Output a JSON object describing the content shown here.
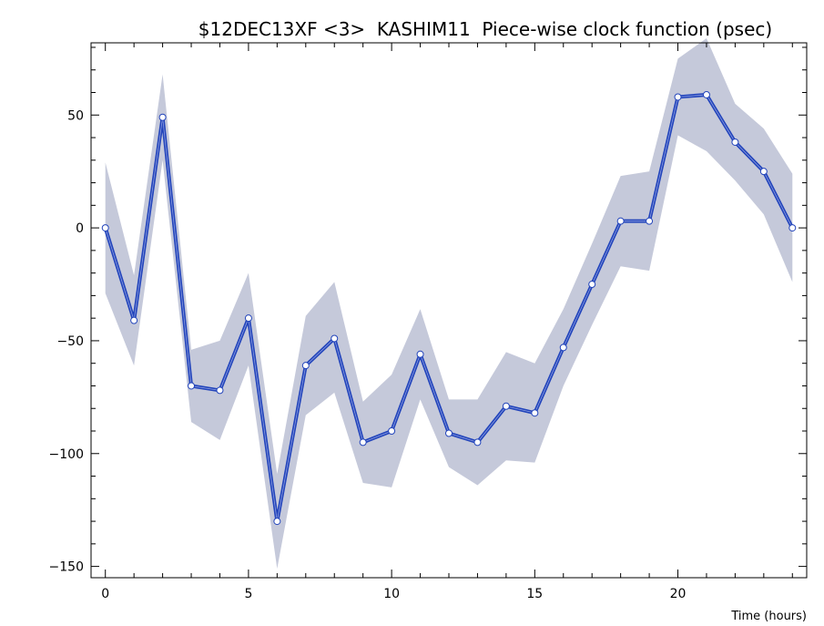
{
  "chart_data": {
    "type": "line",
    "title": "$12DEC13XF <3>  KASHIM11  Piece-wise clock function (psec)",
    "xlabel": "Time (hours)",
    "ylabel": "",
    "xlim": [
      -0.5,
      24.5
    ],
    "ylim": [
      -155,
      82
    ],
    "x_ticks": [
      0,
      5,
      10,
      15,
      20
    ],
    "y_ticks": [
      -150,
      -100,
      -50,
      0,
      50
    ],
    "grid": false,
    "colors": {
      "line": "#2244bb",
      "band": "#c5c9da",
      "marker_fill": "#ffffff",
      "marker_stroke": "#2244bb"
    },
    "x": [
      0,
      1,
      2,
      3,
      4,
      5,
      6,
      7,
      8,
      9,
      10,
      11,
      12,
      13,
      14,
      15,
      16,
      17,
      18,
      19,
      20,
      21,
      22,
      23,
      24
    ],
    "series": [
      {
        "values": [
          0,
          -41,
          49,
          -70,
          -72,
          -40,
          -130,
          -61,
          -49,
          -95,
          -90,
          -56,
          -91,
          -95,
          -79,
          -82,
          -53,
          -25,
          3,
          3,
          58,
          59,
          38,
          25,
          0
        ],
        "lower": [
          -29,
          -61,
          30,
          -86,
          -94,
          -61,
          -151,
          -83,
          -73,
          -113,
          -115,
          -76,
          -106,
          -114,
          -103,
          -104,
          -70,
          -43,
          -17,
          -19,
          41,
          34,
          21,
          6,
          -24
        ],
        "upper": [
          29,
          -21,
          68,
          -54,
          -50,
          -20,
          -109,
          -39,
          -24,
          -77,
          -65,
          -36,
          -76,
          -76,
          -55,
          -60,
          -36,
          -7,
          23,
          25,
          75,
          84,
          55,
          44,
          24
        ]
      }
    ]
  }
}
